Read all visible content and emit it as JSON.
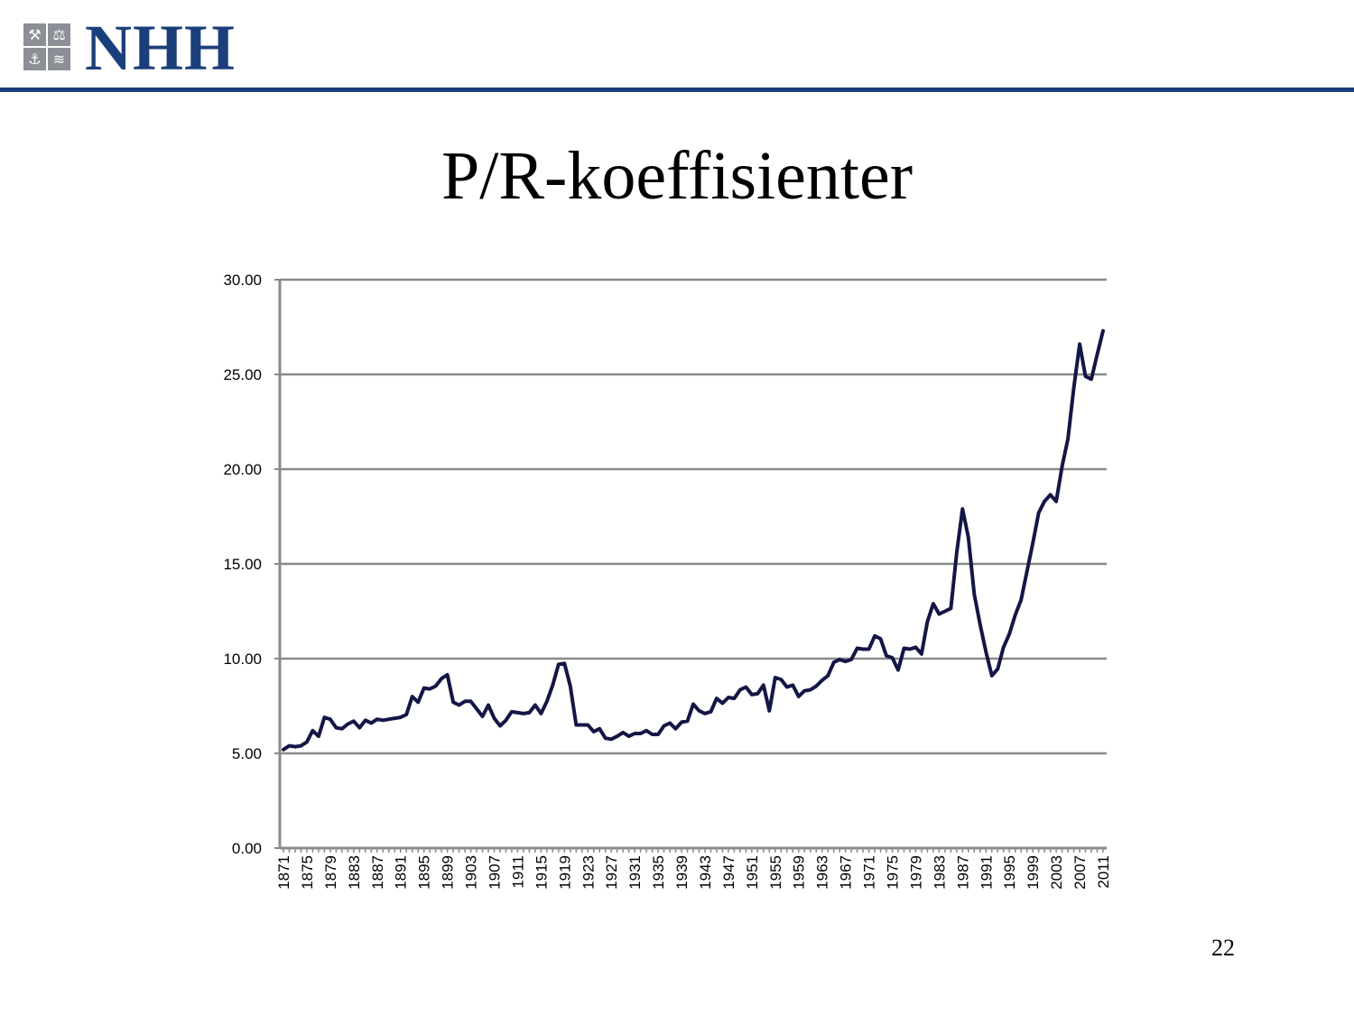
{
  "header": {
    "logo_text": "NHH",
    "logo_icons": [
      "crossed-hammers-icon",
      "scales-icon",
      "anchor-icon",
      "ship-icon"
    ],
    "brand_color": "#1b3f7a"
  },
  "slide": {
    "title": "P/R-koeffisienter",
    "page_number": "22"
  },
  "chart_data": {
    "type": "line",
    "title": "",
    "xlabel": "",
    "ylabel": "",
    "ylim": [
      0,
      30
    ],
    "grid": true,
    "legend": "none",
    "line_color": "#141646",
    "y_ticks": [
      "0.00",
      "5.00",
      "10.00",
      "15.00",
      "20.00",
      "25.00",
      "30.00"
    ],
    "x_tick_labels": [
      "1871",
      "1875",
      "1879",
      "1883",
      "1887",
      "1891",
      "1895",
      "1899",
      "1903",
      "1907",
      "1911",
      "1915",
      "1919",
      "1923",
      "1927",
      "1931",
      "1935",
      "1939",
      "1943",
      "1947",
      "1951",
      "1955",
      "1959",
      "1963",
      "1967",
      "1971",
      "1975",
      "1979",
      "1983",
      "1987",
      "1991",
      "1995",
      "1999",
      "2003",
      "2007",
      "2011"
    ],
    "x": [
      1871,
      1872,
      1873,
      1874,
      1875,
      1876,
      1877,
      1878,
      1879,
      1880,
      1881,
      1882,
      1883,
      1884,
      1885,
      1886,
      1887,
      1888,
      1889,
      1890,
      1891,
      1892,
      1893,
      1894,
      1895,
      1896,
      1897,
      1898,
      1899,
      1900,
      1901,
      1902,
      1903,
      1904,
      1905,
      1906,
      1907,
      1908,
      1909,
      1910,
      1911,
      1912,
      1913,
      1914,
      1915,
      1916,
      1917,
      1918,
      1919,
      1920,
      1921,
      1922,
      1923,
      1924,
      1925,
      1926,
      1927,
      1928,
      1929,
      1930,
      1931,
      1932,
      1933,
      1934,
      1935,
      1936,
      1937,
      1938,
      1939,
      1940,
      1941,
      1942,
      1943,
      1944,
      1945,
      1946,
      1947,
      1948,
      1949,
      1950,
      1951,
      1952,
      1953,
      1954,
      1955,
      1956,
      1957,
      1958,
      1959,
      1960,
      1961,
      1962,
      1963,
      1964,
      1965,
      1966,
      1967,
      1968,
      1969,
      1970,
      1971,
      1972,
      1973,
      1974,
      1975,
      1976,
      1977,
      1978,
      1979,
      1980,
      1981,
      1982,
      1983,
      1984,
      1985,
      1986,
      1987,
      1988,
      1989,
      1990,
      1991,
      1992,
      1993,
      1994,
      1995,
      1996,
      1997,
      1998,
      1999,
      2000,
      2001,
      2002,
      2003,
      2004,
      2005,
      2006,
      2007,
      2008,
      2009,
      2010,
      2011
    ],
    "series": [
      {
        "name": "",
        "values": [
          5.2,
          5.4,
          5.35,
          5.4,
          5.6,
          6.2,
          5.9,
          6.9,
          6.8,
          6.35,
          6.3,
          6.55,
          6.7,
          6.35,
          6.75,
          6.6,
          6.8,
          6.75,
          6.8,
          6.85,
          6.9,
          7.05,
          8.0,
          7.7,
          8.45,
          8.4,
          8.55,
          8.95,
          9.15,
          7.7,
          7.55,
          7.75,
          7.75,
          7.35,
          6.95,
          7.55,
          6.85,
          6.45,
          6.75,
          7.2,
          7.15,
          7.1,
          7.15,
          7.55,
          7.1,
          7.75,
          8.6,
          9.7,
          9.75,
          8.55,
          6.5,
          6.5,
          6.5,
          6.15,
          6.3,
          5.8,
          5.75,
          5.9,
          6.1,
          5.9,
          6.05,
          6.05,
          6.2,
          6.0,
          6.0,
          6.45,
          6.6,
          6.3,
          6.65,
          6.7,
          7.6,
          7.25,
          7.1,
          7.2,
          7.9,
          7.65,
          7.95,
          7.9,
          8.35,
          8.5,
          8.1,
          8.15,
          8.6,
          7.25,
          9.0,
          8.9,
          8.5,
          8.6,
          8.0,
          8.3,
          8.35,
          8.55,
          8.85,
          9.1,
          9.8,
          9.95,
          9.85,
          9.95,
          10.55,
          10.5,
          10.5,
          11.2,
          11.05,
          10.15,
          10.05,
          9.4,
          10.55,
          10.5,
          10.6,
          10.25,
          11.95,
          12.9,
          12.35,
          12.5,
          12.65,
          15.6,
          17.9,
          16.4,
          13.4,
          11.8,
          10.35,
          9.1,
          9.45,
          10.6,
          11.3,
          12.3,
          13.1,
          14.6,
          16.1,
          17.7,
          18.3,
          18.65,
          18.3,
          20.15,
          21.6,
          24.3,
          26.6,
          24.9,
          24.75,
          26.05,
          27.3
        ]
      }
    ]
  }
}
